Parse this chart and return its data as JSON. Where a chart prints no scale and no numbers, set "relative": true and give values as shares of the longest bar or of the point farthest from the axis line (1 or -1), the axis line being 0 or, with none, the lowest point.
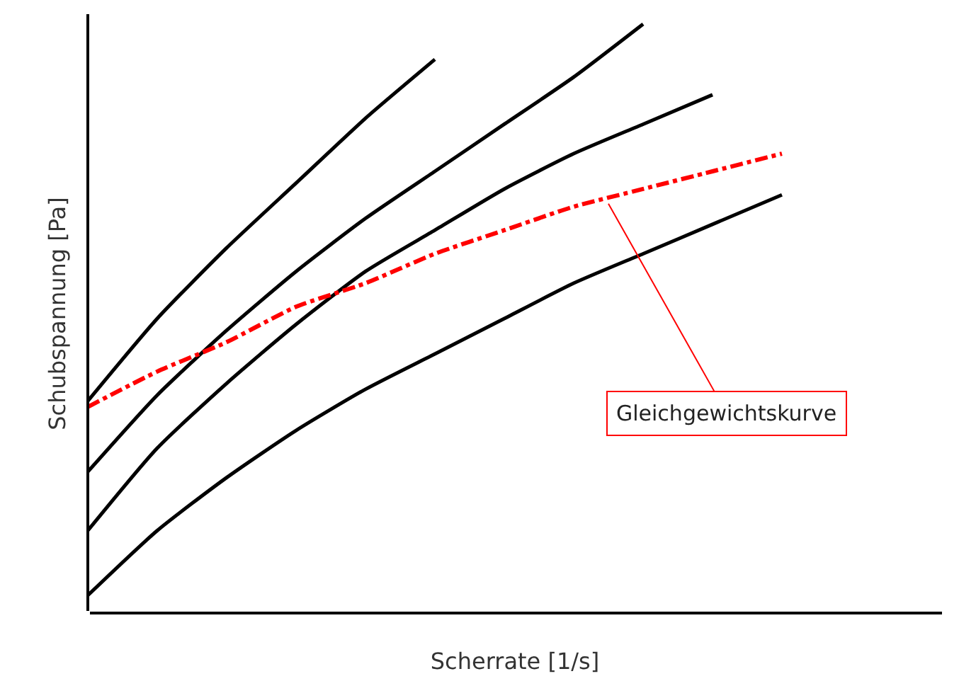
{
  "chart_data": {
    "type": "line",
    "relative": true,
    "xlabel": "Scherrate [1/s]",
    "ylabel": "Schubspannung [Pa]",
    "categories": [
      null,
      null,
      null,
      null,
      null,
      null,
      null,
      null,
      null,
      null,
      null
    ],
    "series": [
      {
        "color": "#000000",
        "line_style": "solid",
        "values": [
          0.36,
          0.5,
          0.62,
          0.73,
          0.84,
          0.94,
          null,
          null,
          null,
          null,
          null
        ]
      },
      {
        "color": "#000000",
        "line_style": "solid",
        "values": [
          0.24,
          0.37,
          0.48,
          0.58,
          0.67,
          0.75,
          0.83,
          0.91,
          1.0,
          null,
          null
        ]
      },
      {
        "color": "#000000",
        "line_style": "solid",
        "values": [
          0.14,
          0.28,
          0.39,
          0.49,
          0.58,
          0.65,
          0.72,
          0.78,
          0.83,
          0.88,
          null
        ]
      },
      {
        "color": "#000000",
        "line_style": "solid",
        "values": [
          0.03,
          0.14,
          0.23,
          0.31,
          0.38,
          0.44,
          0.5,
          0.56,
          0.61,
          0.66,
          0.71
        ]
      },
      {
        "color": "#ff0000",
        "line_style": "dashed",
        "values": [
          0.35,
          0.41,
          0.46,
          0.52,
          0.56,
          0.61,
          0.65,
          0.69,
          0.72,
          0.75,
          0.78
        ]
      }
    ],
    "annotations": [
      "Gleichgewichtskurve"
    ],
    "legend": false,
    "marker": "none"
  }
}
